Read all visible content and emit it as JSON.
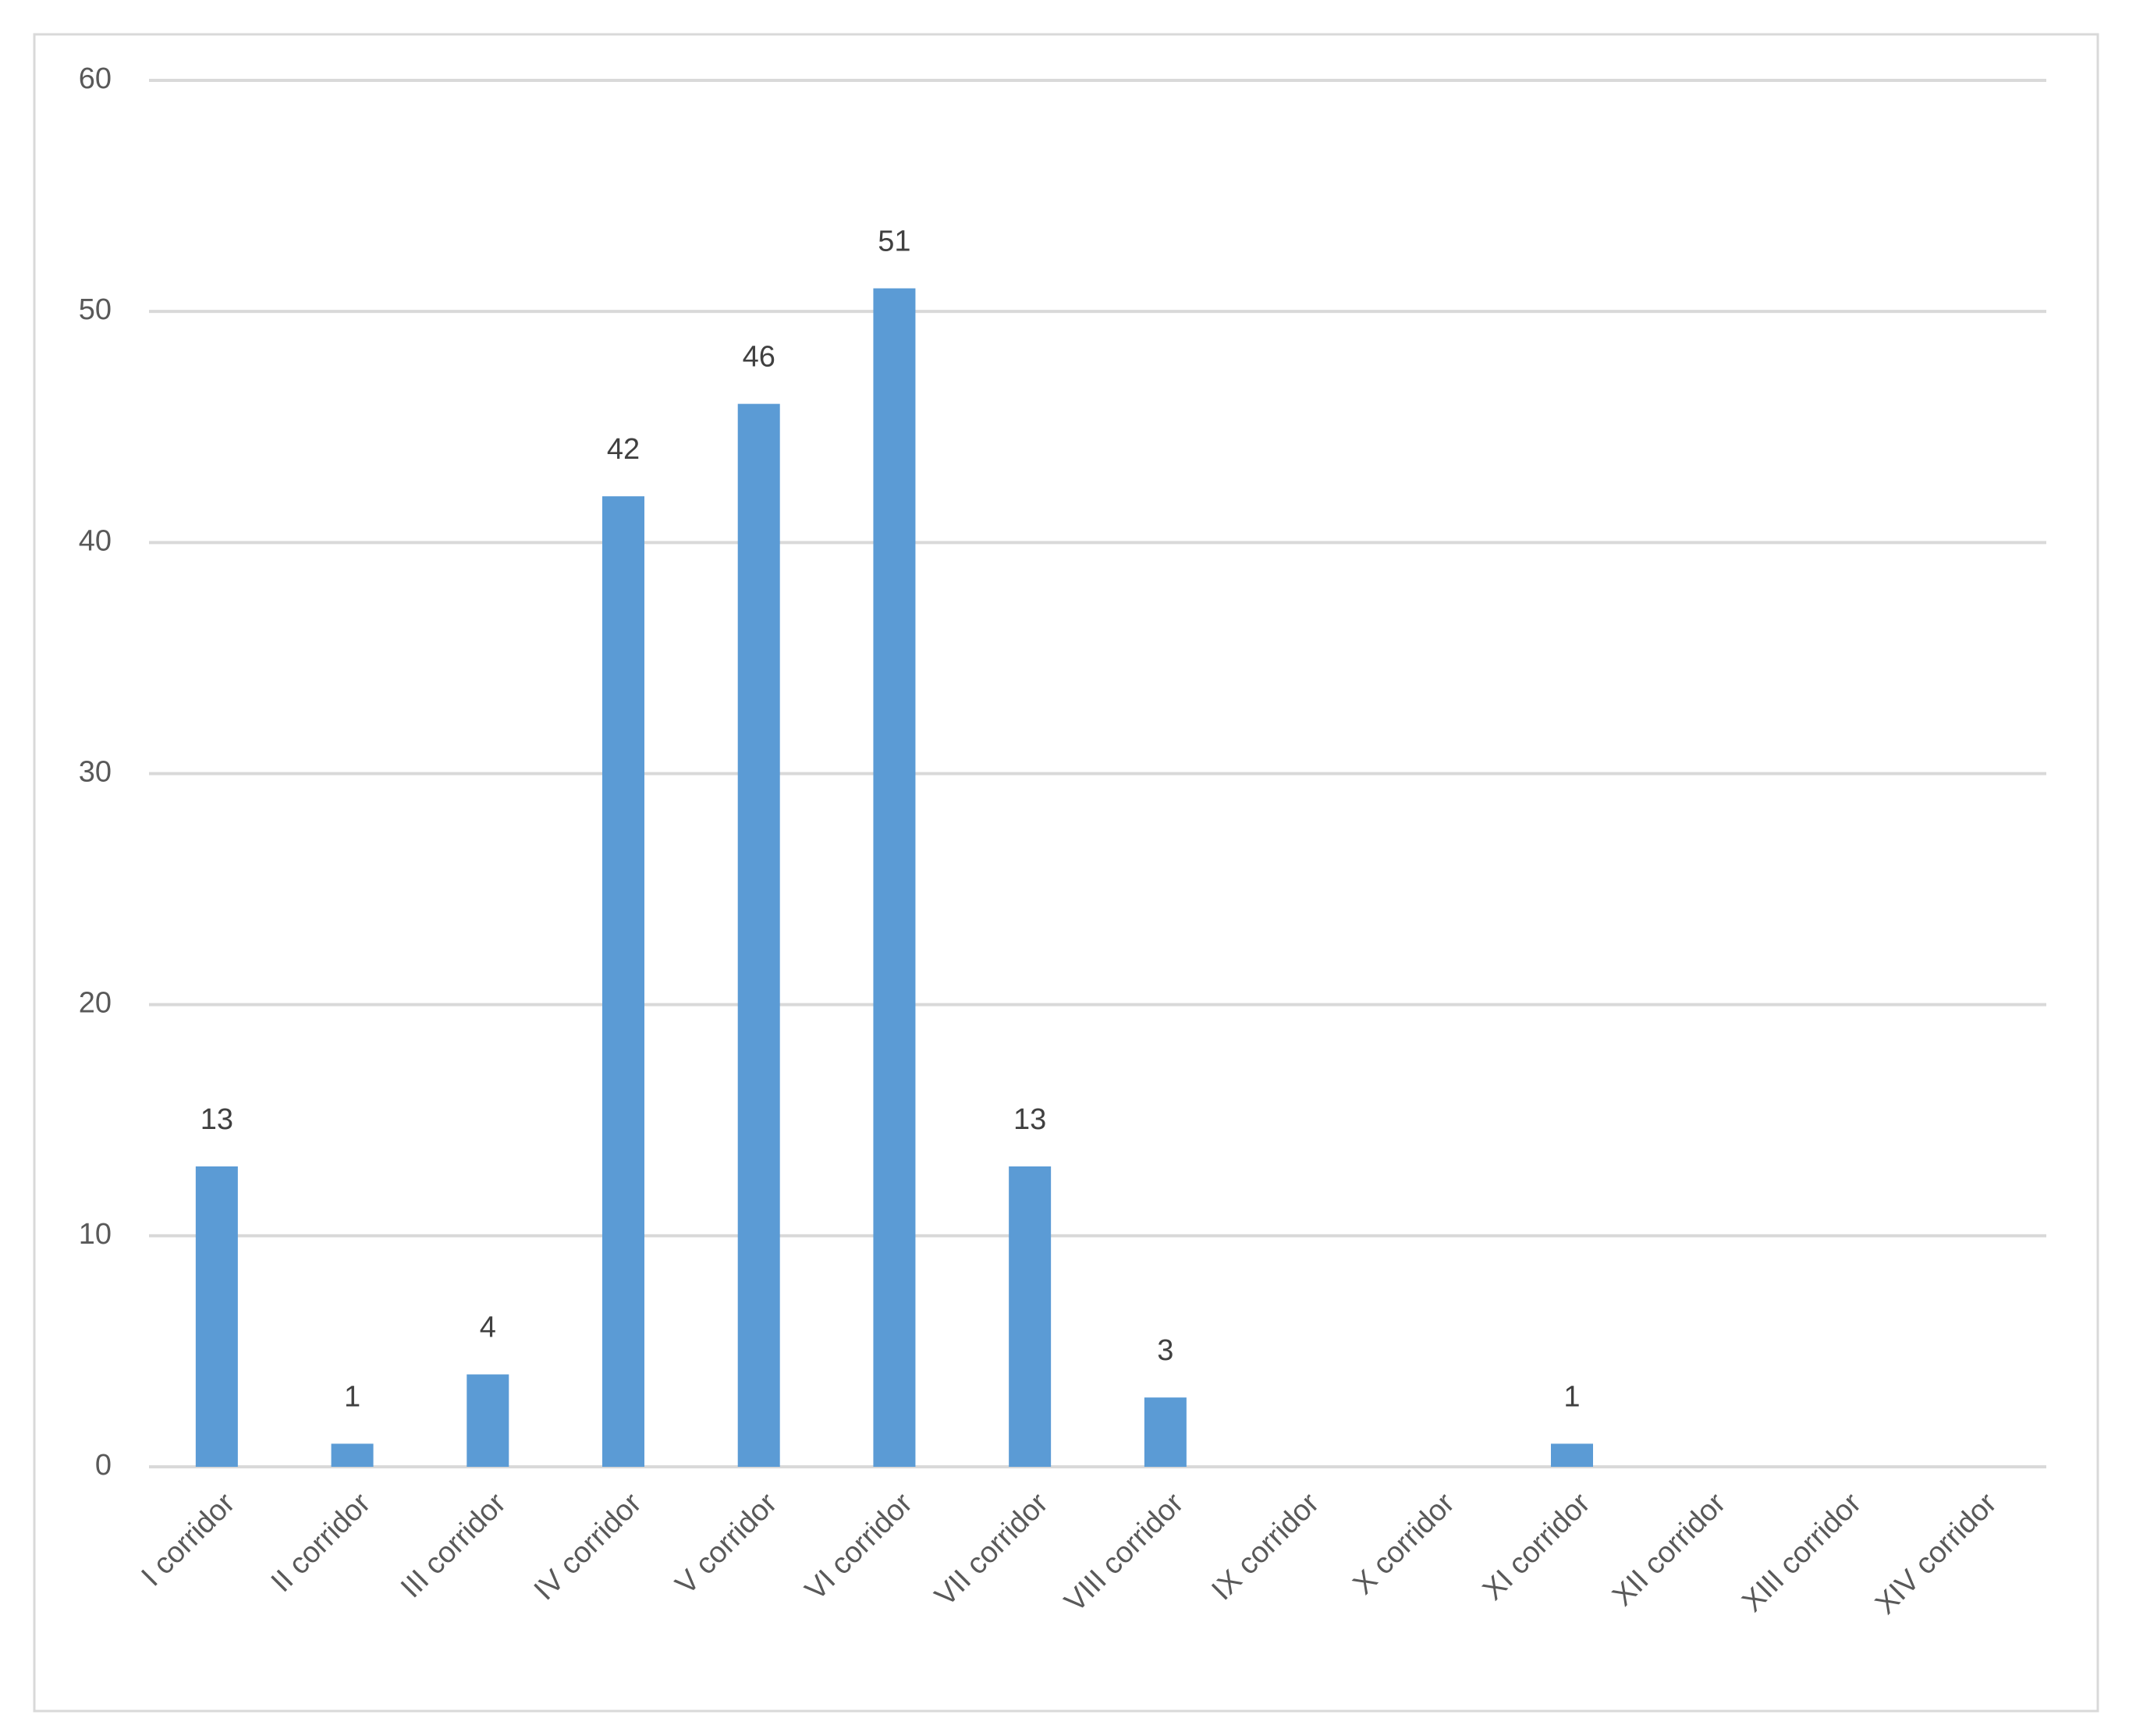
{
  "chart_data": {
    "type": "bar",
    "categories": [
      "I corridor",
      "II corridor",
      "III corridor",
      "IV corridor",
      "V corridor",
      "VI corridor",
      "VII corridor",
      "VIII corridor",
      "IX corridor",
      "X corridor",
      "XI corridor",
      "XII corridor",
      "XIII corridor",
      "XIV corridor"
    ],
    "values": [
      13,
      1,
      4,
      42,
      46,
      51,
      13,
      3,
      0,
      0,
      1,
      0,
      0,
      0
    ],
    "color": "#5b9bd5",
    "ylim": [
      0,
      60
    ],
    "yticks": [
      0,
      10,
      20,
      30,
      40,
      50,
      60
    ],
    "grid": true
  }
}
